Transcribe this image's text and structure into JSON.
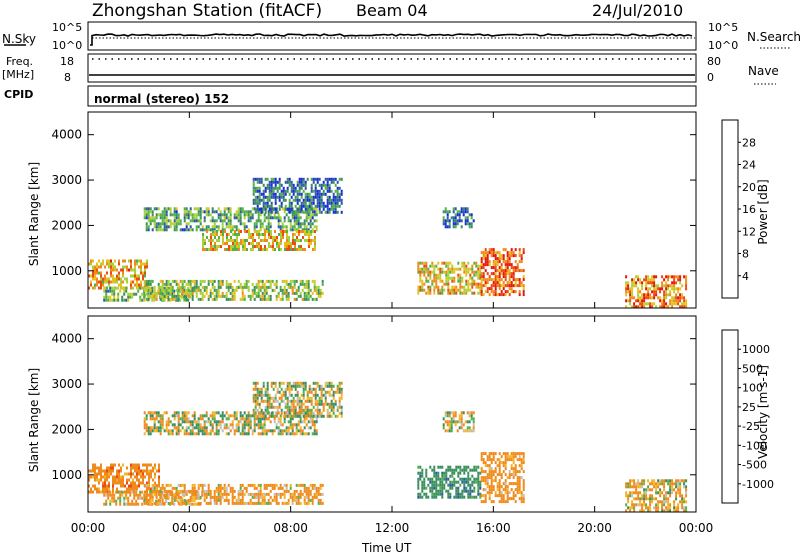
{
  "header": {
    "title": "Zhongshan Station (fitACF)",
    "beam": "Beam 04",
    "date": "24/Jul/2010"
  },
  "noise_panel": {
    "left_label": "N.Sky",
    "left_ticks": [
      "10^5",
      "10^0"
    ],
    "right_ticks": [
      "10^5",
      "10^0"
    ],
    "right_label": "N.Search"
  },
  "freq_panel": {
    "left_label_1": "Freq.",
    "left_label_2": "[MHz]",
    "left_ticks": [
      "18",
      "8"
    ],
    "right_ticks": [
      "80",
      "0"
    ],
    "right_label": "Nave"
  },
  "cpid": {
    "label": "CPID",
    "mode": "normal (stereo) 152"
  },
  "colors": {
    "power": [
      "#1a2bd9",
      "#2d5aa6",
      "#3b8f5f",
      "#55b04a",
      "#a8d23c",
      "#e6c21e",
      "#f08a1c",
      "#ec4b14",
      "#e8140e"
    ],
    "velocity": [
      "#e8140e",
      "#ec4b14",
      "#f08a1c",
      "#f3b52a",
      "#c0c0c0",
      "#55b04a",
      "#3b8f5f",
      "#2d5aa6",
      "#1a2bd9"
    ]
  },
  "chart_data": [
    {
      "type": "heatmap",
      "title": "",
      "xlabel": "Time UT",
      "ylabel": "Slant Range [km]",
      "xticks": [
        "00:00",
        "04:00",
        "08:00",
        "12:00",
        "16:00",
        "20:00",
        "00:00"
      ],
      "xlim_hours": [
        0,
        24
      ],
      "yticks": [
        1000,
        2000,
        3000,
        4000
      ],
      "ylim": [
        180,
        4500
      ],
      "colorbar_label": "Power [dB]",
      "colorbar_ticks": [
        "4",
        "8",
        "12",
        "16",
        "20",
        "24",
        "28"
      ],
      "colorbar_range": [
        0,
        30
      ],
      "regions": [
        {
          "t0": 0.0,
          "t1": 2.3,
          "r0": 600,
          "r1": 1250,
          "value": 20
        },
        {
          "t0": 0.6,
          "t1": 4.2,
          "r0": 350,
          "r1": 650,
          "value": 12
        },
        {
          "t0": 2.2,
          "t1": 9.3,
          "r0": 350,
          "r1": 800,
          "value": 14
        },
        {
          "t0": 2.2,
          "t1": 9.0,
          "r0": 1900,
          "r1": 2400,
          "value": 10
        },
        {
          "t0": 4.5,
          "t1": 9.0,
          "r0": 1500,
          "r1": 1900,
          "value": 18
        },
        {
          "t0": 6.5,
          "t1": 10.0,
          "r0": 2300,
          "r1": 3050,
          "value": 6
        },
        {
          "t0": 13.0,
          "t1": 15.5,
          "r0": 500,
          "r1": 1200,
          "value": 18
        },
        {
          "t0": 14.0,
          "t1": 15.2,
          "r0": 2000,
          "r1": 2400,
          "value": 6
        },
        {
          "t0": 15.5,
          "t1": 17.2,
          "r0": 500,
          "r1": 1500,
          "value": 24
        },
        {
          "t0": 21.2,
          "t1": 23.6,
          "r0": 200,
          "r1": 900,
          "value": 22
        }
      ]
    },
    {
      "type": "heatmap",
      "title": "",
      "xlabel": "Time UT",
      "ylabel": "Slant Range [km]",
      "xticks": [
        "00:00",
        "04:00",
        "08:00",
        "12:00",
        "16:00",
        "20:00",
        "00:00"
      ],
      "xlim_hours": [
        0,
        24
      ],
      "yticks": [
        1000,
        2000,
        3000,
        4000
      ],
      "ylim": [
        180,
        4500
      ],
      "colorbar_label": "Velocity [m s-1]",
      "colorbar_ticks": [
        "1000",
        "500",
        "100",
        "25",
        "-25",
        "-100",
        "-500",
        "-1000"
      ],
      "regions": [
        {
          "t0": 0.0,
          "t1": 2.8,
          "r0": 600,
          "r1": 1250,
          "value": -300
        },
        {
          "t0": 0.6,
          "t1": 4.5,
          "r0": 350,
          "r1": 650,
          "value": -150
        },
        {
          "t0": 2.2,
          "t1": 9.3,
          "r0": 350,
          "r1": 800,
          "value": -200
        },
        {
          "t0": 2.2,
          "t1": 9.0,
          "r0": 1900,
          "r1": 2400,
          "value": 0
        },
        {
          "t0": 6.5,
          "t1": 10.0,
          "r0": 2300,
          "r1": 3050,
          "value": 0
        },
        {
          "t0": 13.0,
          "t1": 15.5,
          "r0": 500,
          "r1": 1200,
          "value": 300
        },
        {
          "t0": 14.0,
          "t1": 15.2,
          "r0": 2000,
          "r1": 2400,
          "value": 0
        },
        {
          "t0": 15.5,
          "t1": 17.2,
          "r0": 400,
          "r1": 1500,
          "value": -250
        },
        {
          "t0": 21.2,
          "t1": 23.6,
          "r0": 200,
          "r1": 900,
          "value": -100
        }
      ]
    }
  ]
}
